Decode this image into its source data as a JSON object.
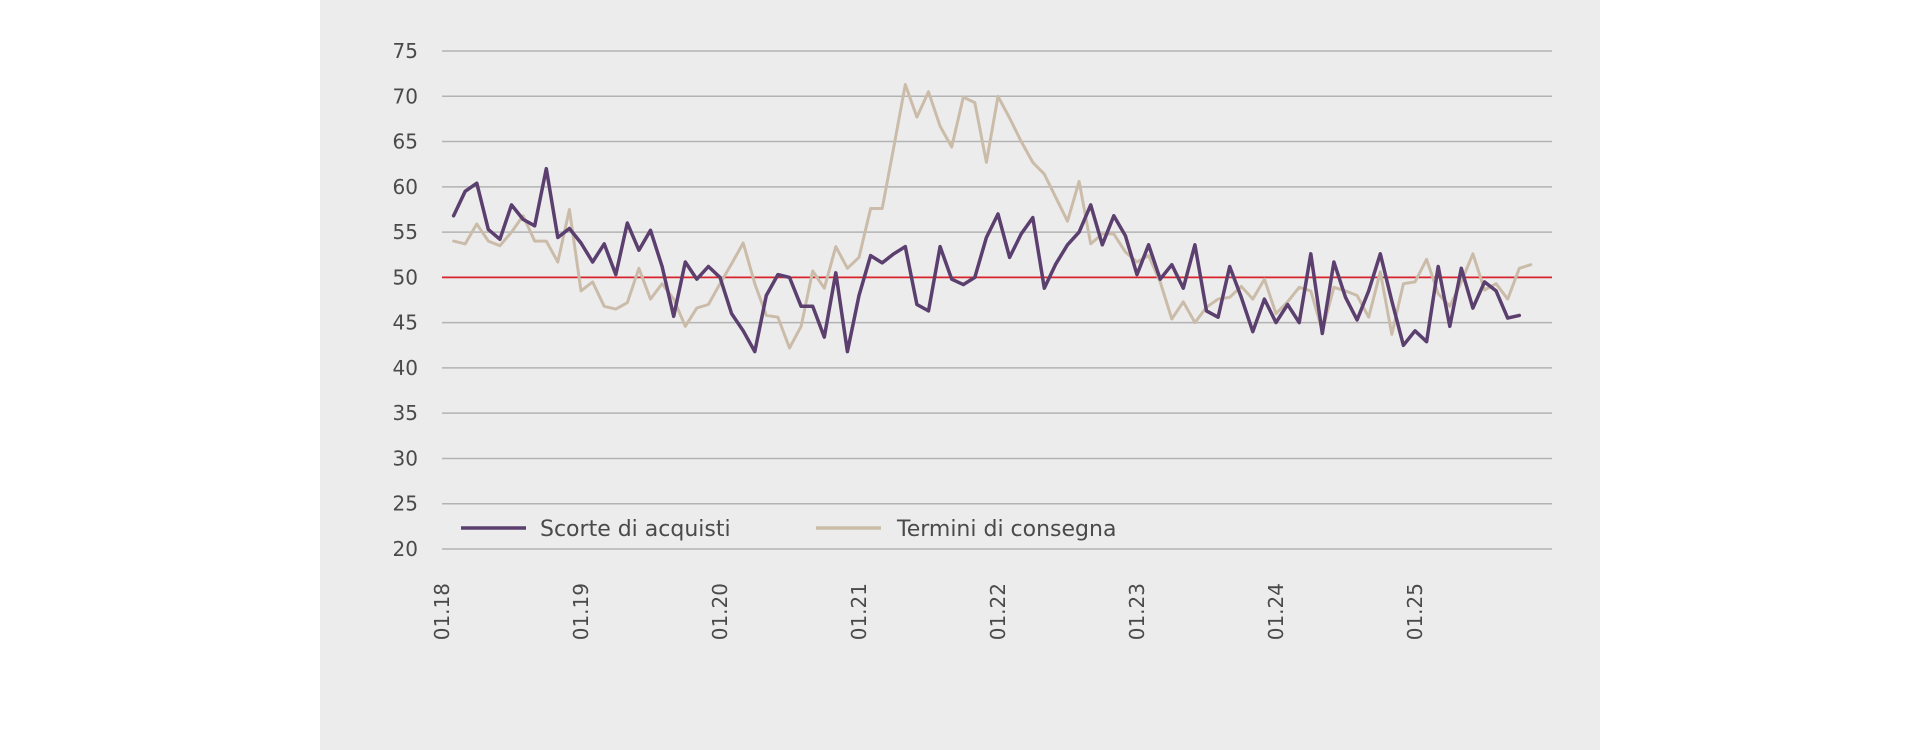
{
  "chart_data": {
    "type": "line",
    "title": "",
    "xlabel": "",
    "ylabel": "",
    "ylim": [
      20,
      75
    ],
    "yticks": [
      75,
      70,
      65,
      60,
      55,
      50,
      45,
      40,
      35,
      30,
      25,
      20
    ],
    "xticks": [
      "01.18",
      "01.19",
      "01.20",
      "01.21",
      "01.22",
      "01.23",
      "01.24",
      "01.25"
    ],
    "x_start": "02.18",
    "x_step": "1 month",
    "grid": true,
    "reference_line": {
      "value": 50,
      "color": "#d9232d"
    },
    "legend_position": "bottom-left",
    "series": [
      {
        "name": "Scorte di acquisti",
        "color": "#5b3f6e",
        "values": [
          56.8,
          59.5,
          60.4,
          55.3,
          54.2,
          58.0,
          56.4,
          55.7,
          62.0,
          54.4,
          55.4,
          53.8,
          51.7,
          53.7,
          50.3,
          56.0,
          53.0,
          55.2,
          51.2,
          45.7,
          51.7,
          49.8,
          51.2,
          50.0,
          46.0,
          44.1,
          41.8,
          48.0,
          50.3,
          50.0,
          46.8,
          46.8,
          43.4,
          50.5,
          41.8,
          48.0,
          52.4,
          51.6,
          52.6,
          53.4,
          47.0,
          46.3,
          53.4,
          49.8,
          49.2,
          50.0,
          54.4,
          57.0,
          52.2,
          54.8,
          56.6,
          48.8,
          51.5,
          53.6,
          55.0,
          58.0,
          53.6,
          56.8,
          54.6,
          50.3,
          53.6,
          49.8,
          51.4,
          48.8,
          53.6,
          46.3,
          45.6,
          51.2,
          47.8,
          44.0,
          47.6,
          45.0,
          47.0,
          45.0,
          52.6,
          43.8,
          51.7,
          47.8,
          45.3,
          48.5,
          52.6,
          47.4,
          42.5,
          44.1,
          42.9,
          51.2,
          44.6,
          51.0,
          46.6,
          49.5,
          48.5,
          45.5,
          45.8
        ]
      },
      {
        "name": "Termini di consegna",
        "color": "#cbbcaa",
        "values": [
          54.0,
          53.7,
          55.9,
          54.0,
          53.5,
          55.0,
          56.8,
          54.0,
          54.0,
          51.7,
          57.5,
          48.5,
          49.5,
          46.8,
          46.5,
          47.2,
          51.0,
          47.6,
          49.3,
          47.6,
          44.6,
          46.6,
          47.0,
          49.3,
          51.5,
          53.8,
          49.3,
          45.8,
          45.6,
          42.2,
          44.6,
          50.7,
          48.8,
          53.4,
          51.0,
          52.2,
          57.6,
          57.6,
          64.4,
          71.3,
          67.7,
          70.5,
          66.7,
          64.4,
          69.9,
          69.3,
          62.7,
          70.0,
          67.6,
          65.0,
          62.7,
          61.4,
          58.8,
          56.2,
          60.6,
          53.7,
          54.8,
          54.8,
          52.8,
          51.7,
          52.4,
          49.5,
          45.4,
          47.3,
          45.0,
          46.7,
          47.6,
          47.8,
          49.0,
          47.6,
          49.8,
          46.0,
          47.3,
          48.9,
          48.5,
          44.1,
          48.9,
          48.5,
          48.0,
          45.6,
          50.6,
          43.7,
          49.3,
          49.5,
          52.0,
          48.2,
          46.8,
          49.5,
          52.6,
          48.6,
          49.3,
          47.6,
          51.0,
          51.4
        ]
      }
    ]
  }
}
